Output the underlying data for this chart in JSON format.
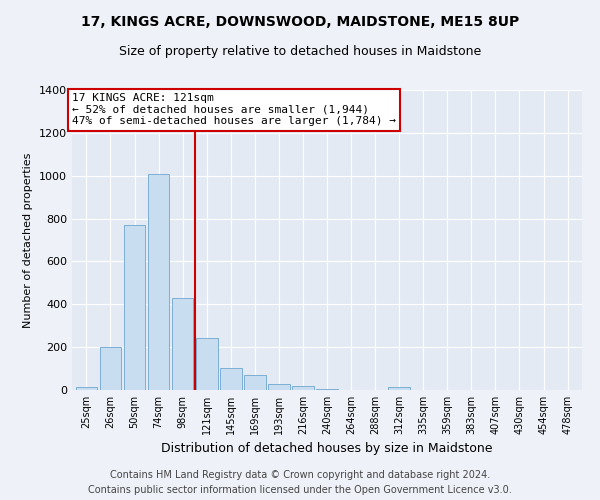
{
  "title": "17, KINGS ACRE, DOWNSWOOD, MAIDSTONE, ME15 8UP",
  "subtitle": "Size of property relative to detached houses in Maidstone",
  "xlabel": "Distribution of detached houses by size in Maidstone",
  "ylabel": "Number of detached properties",
  "footer_line1": "Contains HM Land Registry data © Crown copyright and database right 2024.",
  "footer_line2": "Contains public sector information licensed under the Open Government Licence v3.0.",
  "categories": [
    "25sqm",
    "26sqm",
    "50sqm",
    "74sqm",
    "98sqm",
    "121sqm",
    "145sqm",
    "169sqm",
    "193sqm",
    "216sqm",
    "240sqm",
    "264sqm",
    "288sqm",
    "312sqm",
    "335sqm",
    "359sqm",
    "383sqm",
    "407sqm",
    "430sqm",
    "454sqm",
    "478sqm"
  ],
  "values": [
    15,
    200,
    770,
    1010,
    430,
    245,
    105,
    70,
    30,
    20,
    5,
    2,
    0,
    15,
    0,
    0,
    0,
    0,
    0,
    0,
    0
  ],
  "bar_color": "#c8ddf0",
  "bar_edge_color": "#7bafd4",
  "highlight_color": "#cc0000",
  "vline_x": 4.5,
  "ylim": [
    0,
    1400
  ],
  "yticks": [
    0,
    200,
    400,
    600,
    800,
    1000,
    1200,
    1400
  ],
  "annotation_title": "17 KINGS ACRE: 121sqm",
  "annotation_line1": "← 52% of detached houses are smaller (1,944)",
  "annotation_line2": "47% of semi-detached houses are larger (1,784) →",
  "annotation_box_facecolor": "#ffffff",
  "annotation_box_edgecolor": "#cc0000",
  "background_color": "#eef2f8",
  "plot_bg_color": "#e4eaf4",
  "title_fontsize": 10,
  "subtitle_fontsize": 9,
  "annotation_fontsize": 8,
  "footer_fontsize": 7,
  "ylabel_fontsize": 8,
  "xlabel_fontsize": 9
}
